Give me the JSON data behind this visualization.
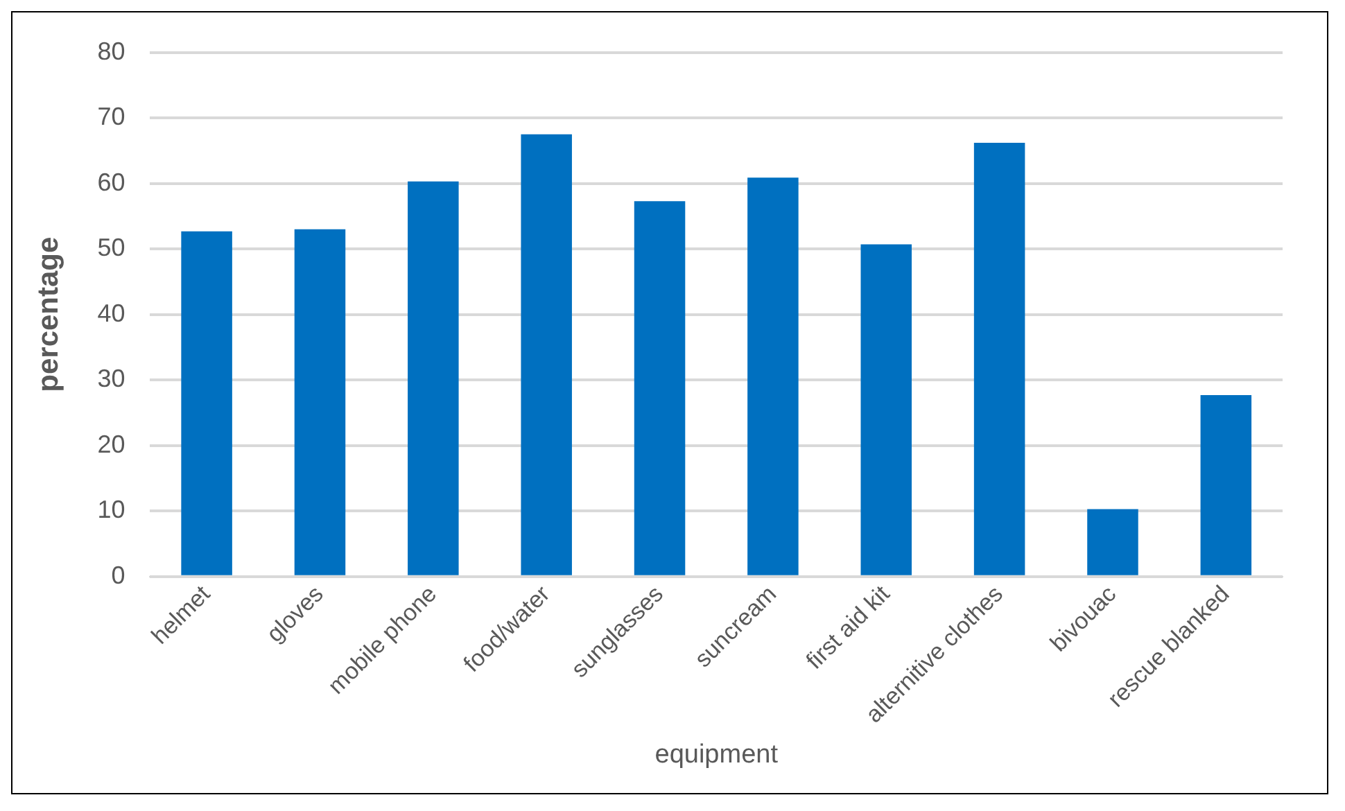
{
  "chart_data": {
    "type": "bar",
    "xlabel": "equipment",
    "ylabel": "percentage",
    "categories": [
      "helmet",
      "gloves",
      "mobile phone",
      "food/water",
      "sunglasses",
      "suncream",
      "first aid kit",
      "alternitive clothes",
      "bivouac",
      "rescue blanked"
    ],
    "values": [
      52.7,
      53,
      60.3,
      67.5,
      57.3,
      60.9,
      50.7,
      66.2,
      10.3,
      27.7
    ],
    "color": "#0070c0",
    "ylim": [
      0,
      80
    ],
    "yticks": [
      0,
      10,
      20,
      30,
      40,
      50,
      60,
      70,
      80
    ],
    "grid": "y",
    "legend": false
  }
}
